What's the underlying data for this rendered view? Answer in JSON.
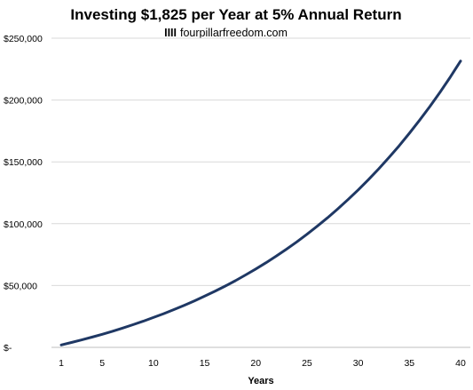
{
  "chart_data": {
    "type": "line",
    "title": "Investing $1,825 per Year at 5% Annual Return",
    "subtitle_mark": "IIII",
    "subtitle": "fourpillarfreedom.com",
    "xlabel": "Years",
    "ylabel": "",
    "x": [
      1,
      2,
      3,
      4,
      5,
      6,
      7,
      8,
      9,
      10,
      11,
      12,
      13,
      14,
      15,
      16,
      17,
      18,
      19,
      20,
      21,
      22,
      23,
      24,
      25,
      26,
      27,
      28,
      29,
      30,
      31,
      32,
      33,
      34,
      35,
      36,
      37,
      38,
      39,
      40
    ],
    "series": [
      {
        "name": "",
        "color": "#1f3864",
        "values": [
          1916,
          3929,
          6041,
          8260,
          10589,
          13035,
          15602,
          18299,
          21130,
          24103,
          27225,
          30502,
          33944,
          37558,
          41352,
          45337,
          49520,
          53913,
          58525,
          63367,
          68453,
          73792,
          79398,
          85285,
          91466,
          97956,
          104771,
          111926,
          119440,
          127329,
          135612,
          144310,
          153442,
          163031,
          173099,
          183671,
          194773,
          206428,
          218666,
          231517
        ]
      }
    ],
    "x_ticks": [
      "1",
      "5",
      "10",
      "15",
      "20",
      "25",
      "30",
      "35",
      "40"
    ],
    "x_tick_values": [
      1,
      5,
      10,
      15,
      20,
      25,
      30,
      35,
      40
    ],
    "y_ticks": [
      "$-",
      "$50,000",
      "$100,000",
      "$150,000",
      "$200,000",
      "$250,000"
    ],
    "y_tick_values": [
      0,
      50000,
      100000,
      150000,
      200000,
      250000
    ],
    "ylim": [
      0,
      250000
    ],
    "xlim": [
      1,
      40
    ],
    "grid": "horizontal",
    "legend": "none"
  }
}
